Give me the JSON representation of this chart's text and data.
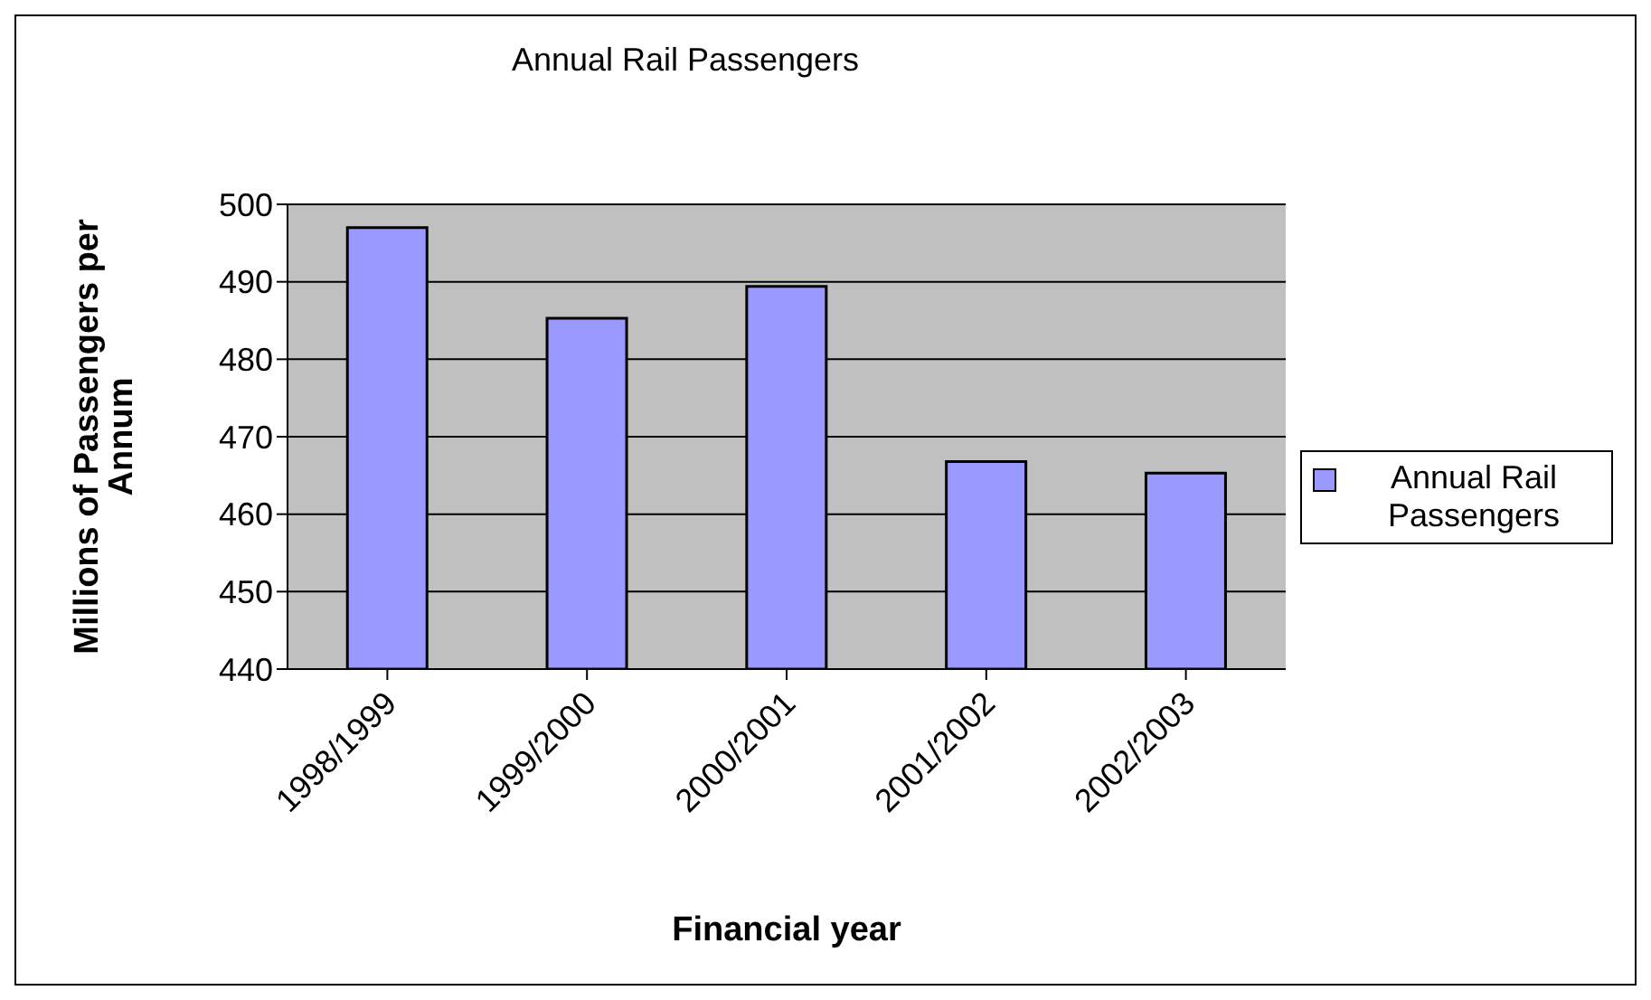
{
  "chart_data": {
    "type": "bar",
    "title": "Annual Rail Passengers",
    "xlabel": "Financial year",
    "ylabel": "Millions of Passengers per Annum",
    "categories": [
      "1998/1999",
      "1999/2000",
      "2000/2001",
      "2001/2002",
      "2002/2003"
    ],
    "series": [
      {
        "name": "Annual Rail Passengers",
        "color": "#9999ff",
        "values": [
          497,
          485.3,
          489.4,
          466.8,
          465.3
        ]
      }
    ],
    "ylim": [
      440,
      500
    ],
    "yticks": [
      440,
      450,
      460,
      470,
      480,
      490,
      500
    ],
    "grid": "y",
    "legend": "right"
  }
}
